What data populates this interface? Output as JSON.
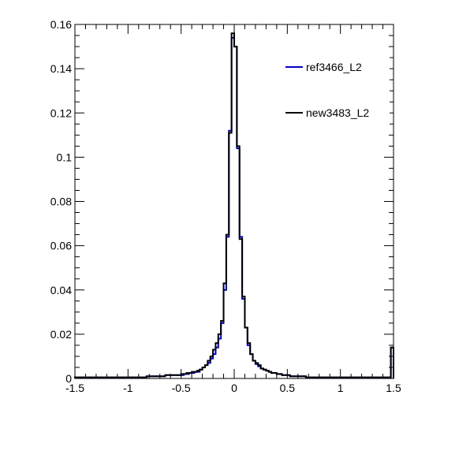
{
  "chart_data": {
    "type": "line",
    "style": "step-histogram",
    "xlim": [
      -1.5,
      1.5
    ],
    "ylim": [
      0,
      0.16
    ],
    "x_ticks": [
      -1.5,
      -1,
      -0.5,
      0,
      0.5,
      1,
      1.5
    ],
    "x_tick_labels": [
      "-1.5",
      "-1",
      "-0.5",
      "0",
      "0.5",
      "1",
      "1.5"
    ],
    "y_ticks": [
      0,
      0.02,
      0.04,
      0.06,
      0.08,
      0.1,
      0.12,
      0.14,
      0.16
    ],
    "y_tick_labels": [
      "0",
      "0.02",
      "0.04",
      "0.06",
      "0.08",
      "0.1",
      "0.12",
      "0.14",
      "0.16"
    ],
    "legend_position": "top-right",
    "bins": {
      "min": -1.5,
      "max": 1.5,
      "count": 120
    },
    "series": [
      {
        "name": "ref3466_L2",
        "color": "#0000cc",
        "values": [
          0.0005,
          0.0005,
          0.0005,
          0.0005,
          0.0005,
          0.0005,
          0.0005,
          0.0005,
          0.0005,
          0.0005,
          0.0005,
          0.0005,
          0.0005,
          0.0005,
          0.0005,
          0.0005,
          0.0005,
          0.0005,
          0.0005,
          0.0005,
          0.0005,
          0.0005,
          0.0005,
          0.0005,
          0.0005,
          0.0005,
          0.0005,
          0.001,
          0.001,
          0.001,
          0.001,
          0.001,
          0.001,
          0.001,
          0.0015,
          0.0015,
          0.0015,
          0.0015,
          0.0015,
          0.0015,
          0.0015,
          0.002,
          0.002,
          0.0025,
          0.0025,
          0.003,
          0.003,
          0.004,
          0.005,
          0.006,
          0.007,
          0.009,
          0.011,
          0.014,
          0.018,
          0.025,
          0.04,
          0.064,
          0.112,
          0.154,
          0.15,
          0.104,
          0.064,
          0.036,
          0.023,
          0.015,
          0.011,
          0.008,
          0.0065,
          0.0055,
          0.0045,
          0.004,
          0.0035,
          0.003,
          0.0025,
          0.0025,
          0.002,
          0.002,
          0.0015,
          0.0015,
          0.0015,
          0.001,
          0.001,
          0.001,
          0.001,
          0.001,
          0.001,
          0.0005,
          0.0005,
          0.0005,
          0.0005,
          0.0005,
          0.0005,
          0.0005,
          0.0005,
          0.0005,
          0.0005,
          0.0005,
          0.0005,
          0.0005,
          0.0005,
          0.0005,
          0.0005,
          0.0005,
          0.0005,
          0.0005,
          0.0005,
          0.0005,
          0.0005,
          0.0005,
          0.0005,
          0.0005,
          0.0005,
          0.0005,
          0.0005,
          0.0005,
          0.0005,
          0.0005,
          0.0005,
          0.014
        ]
      },
      {
        "name": "new3483_L2",
        "color": "#000000",
        "values": [
          0.0005,
          0.0005,
          0.0005,
          0.0005,
          0.0005,
          0.0005,
          0.0005,
          0.0005,
          0.0005,
          0.0005,
          0.0005,
          0.0005,
          0.0005,
          0.0005,
          0.0005,
          0.0005,
          0.0005,
          0.0005,
          0.0005,
          0.0005,
          0.0005,
          0.0005,
          0.0005,
          0.0005,
          0.0005,
          0.0005,
          0.0005,
          0.001,
          0.001,
          0.001,
          0.001,
          0.001,
          0.001,
          0.001,
          0.0015,
          0.0015,
          0.0015,
          0.0015,
          0.0015,
          0.0015,
          0.002,
          0.002,
          0.0025,
          0.0025,
          0.003,
          0.003,
          0.0035,
          0.004,
          0.005,
          0.006,
          0.008,
          0.01,
          0.013,
          0.016,
          0.02,
          0.026,
          0.043,
          0.065,
          0.111,
          0.156,
          0.15,
          0.105,
          0.063,
          0.037,
          0.023,
          0.016,
          0.011,
          0.008,
          0.007,
          0.006,
          0.0045,
          0.004,
          0.0035,
          0.003,
          0.0025,
          0.0025,
          0.002,
          0.002,
          0.0015,
          0.0015,
          0.0015,
          0.001,
          0.001,
          0.001,
          0.001,
          0.001,
          0.001,
          0.0005,
          0.0005,
          0.0005,
          0.0005,
          0.0005,
          0.0005,
          0.0005,
          0.0005,
          0.0005,
          0.0005,
          0.0005,
          0.0005,
          0.0005,
          0.0005,
          0.0005,
          0.0005,
          0.0005,
          0.0005,
          0.0005,
          0.0005,
          0.0005,
          0.0005,
          0.0005,
          0.0005,
          0.0005,
          0.0005,
          0.0005,
          0.0005,
          0.0005,
          0.0005,
          0.0005,
          0.0005,
          0.014
        ]
      }
    ]
  }
}
